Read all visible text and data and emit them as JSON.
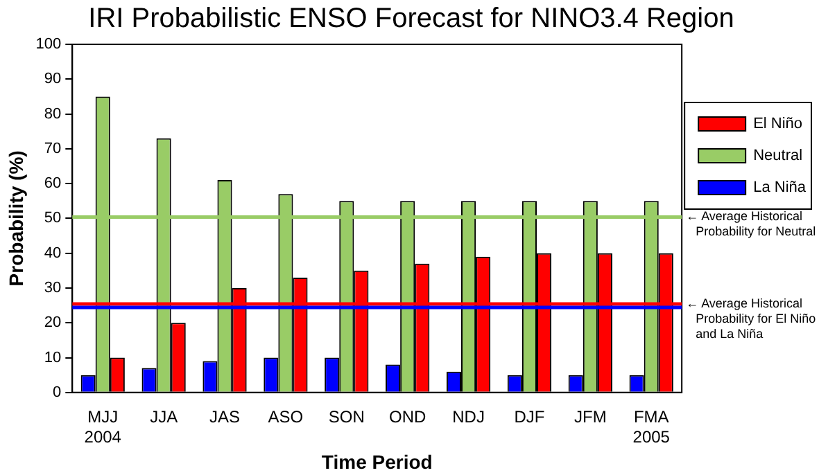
{
  "chart_data": {
    "type": "bar",
    "title": "IRI Probabilistic ENSO Forecast for NINO3.4 Region",
    "xlabel": "Time Period",
    "ylabel": "Probability (%)",
    "categories": [
      "MJJ\n2004",
      "JJA",
      "JAS",
      "ASO",
      "SON",
      "OND",
      "NDJ",
      "DJF",
      "JFM",
      "FMA\n2005"
    ],
    "series": [
      {
        "name": "La Niña",
        "color": "#0000ff",
        "values": [
          5,
          7,
          9,
          10,
          10,
          8,
          6,
          5,
          5,
          5
        ]
      },
      {
        "name": "Neutral",
        "color": "#99cc66",
        "values": [
          85,
          73,
          61,
          57,
          55,
          55,
          55,
          55,
          55,
          55
        ]
      },
      {
        "name": "El Niño",
        "color": "#ff0000",
        "values": [
          10,
          20,
          30,
          33,
          35,
          37,
          39,
          40,
          40,
          40
        ]
      }
    ],
    "ylim": [
      0,
      100
    ],
    "yticks": [
      0,
      10,
      20,
      30,
      40,
      50,
      60,
      70,
      80,
      90,
      100
    ],
    "grid": false,
    "legend": "top right",
    "ref_lines": [
      {
        "axis": "y",
        "value": 50,
        "label": "← Average Historical Probability for Neutral",
        "color": "#99cc66"
      },
      {
        "axis": "y",
        "value": 25,
        "label": "← Average Historical Probability for El Niño and La Niña",
        "color": "#ff0000"
      },
      {
        "axis": "y",
        "value": 25,
        "color": "#0000ff"
      }
    ]
  }
}
